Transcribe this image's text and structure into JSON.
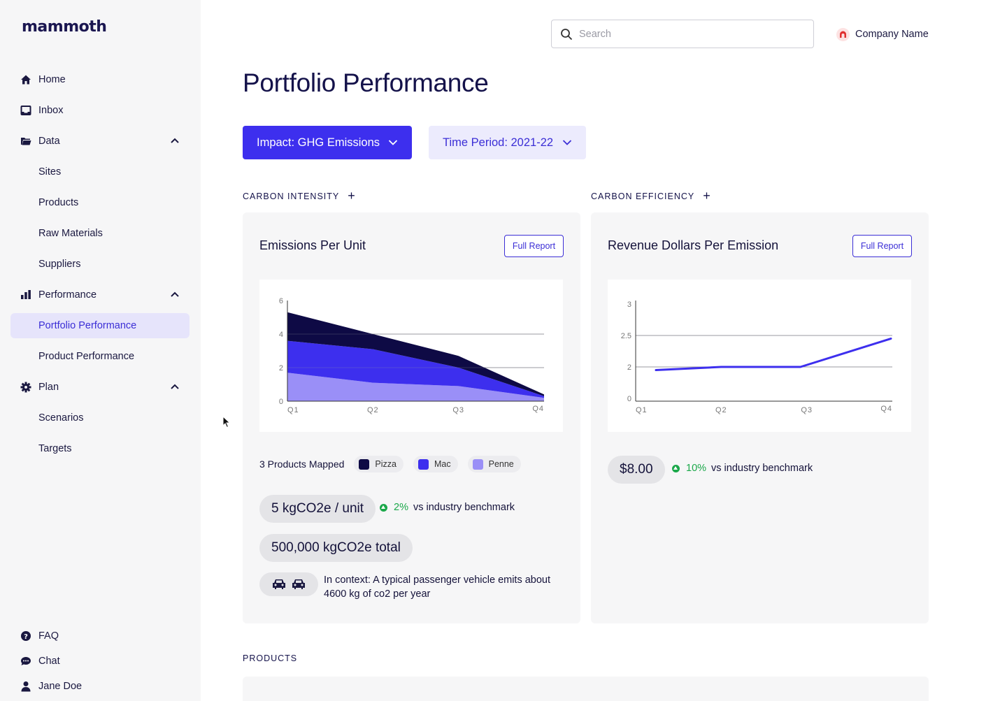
{
  "app": {
    "logo": "mammoth"
  },
  "sidebar": {
    "items": [
      {
        "label": "Home",
        "icon": "home-icon"
      },
      {
        "label": "Inbox",
        "icon": "inbox-icon"
      },
      {
        "label": "Data",
        "icon": "folder-icon"
      },
      {
        "label": "Sites"
      },
      {
        "label": "Products"
      },
      {
        "label": "Raw Materials"
      },
      {
        "label": "Suppliers"
      },
      {
        "label": "Performance",
        "icon": "bar-chart-icon"
      },
      {
        "label": "Portfolio Performance",
        "active": true
      },
      {
        "label": "Product Performance"
      },
      {
        "label": "Plan",
        "icon": "gear-icon"
      },
      {
        "label": "Scenarios"
      },
      {
        "label": "Targets"
      }
    ],
    "footer": [
      {
        "label": "FAQ",
        "icon": "help-icon"
      },
      {
        "label": "Chat",
        "icon": "chat-icon"
      },
      {
        "label": "Jane Doe",
        "icon": "user-icon"
      }
    ]
  },
  "header": {
    "search_placeholder": "Search",
    "company_name": "Company Name"
  },
  "page": {
    "title": "Portfolio Performance",
    "impact_dropdown": "Impact: GHG Emissions",
    "time_dropdown": "Time Period: 2021-22",
    "products_label": "PRODUCTS"
  },
  "intensity": {
    "section_label": "CARBON INTENSITY",
    "card_title": "Emissions Per Unit",
    "full_report": "Full Report",
    "mapped_text": "3 Products Mapped",
    "legend": [
      {
        "name": "Pizza",
        "color": "#0e0a45"
      },
      {
        "name": "Mac",
        "color": "#3d2fee"
      },
      {
        "name": "Penne",
        "color": "#9a8ff7"
      }
    ],
    "metric_value": "5 kgCO2e / unit",
    "metric_pct": "2%",
    "metric_bench": "vs industry benchmark",
    "total_value": "500,000 kgCO2e total",
    "context_bold": "In context:",
    "context_text": " A typical passenger vehicle emits about 4600 kg of co2 per year"
  },
  "efficiency": {
    "section_label": "CARBON EFFICIENCY",
    "card_title": "Revenue Dollars Per Emission",
    "full_report": "Full Report",
    "metric_value": "$8.00",
    "metric_pct": "10%",
    "metric_bench": "vs industry benchmark"
  },
  "chart_data": [
    {
      "type": "area",
      "stacked": true,
      "categories": [
        "Q1",
        "Q2",
        "Q3",
        "Q4"
      ],
      "y_ticks": [
        "0",
        "2",
        "4",
        "6"
      ],
      "ylim": [
        0,
        6
      ],
      "series": [
        {
          "name": "Penne",
          "color": "#9a8ff7",
          "values": [
            1.7,
            1.1,
            0.9,
            0.2
          ]
        },
        {
          "name": "Mac",
          "color": "#3d2fee",
          "values": [
            1.9,
            2.0,
            1.1,
            0.1
          ]
        },
        {
          "name": "Pizza",
          "color": "#0e0a45",
          "values": [
            1.7,
            0.9,
            0.7,
            0.1
          ]
        }
      ]
    },
    {
      "type": "line",
      "categories": [
        "Q1",
        "Q2",
        "Q3",
        "Q4"
      ],
      "y_ticks": [
        "0",
        "2",
        "2.5",
        "3"
      ],
      "series": [
        {
          "color": "#3d2fee",
          "values": [
            1.8,
            2.0,
            2.0,
            2.45
          ]
        }
      ]
    }
  ]
}
